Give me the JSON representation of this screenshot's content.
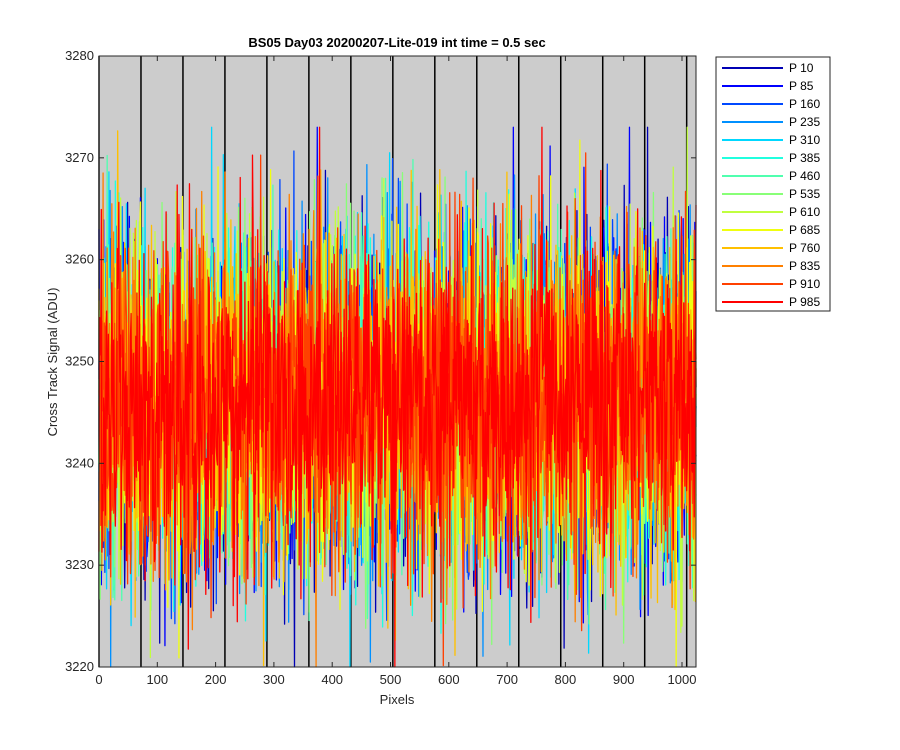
{
  "chart_data": {
    "type": "line",
    "title": "BS05 Day03 20200207-Lite-019 int time = 0.5 sec",
    "xlabel": "Pixels",
    "ylabel": "Cross Track Signal (ADU)",
    "xlim": [
      0,
      1024
    ],
    "ylim": [
      3220,
      3280
    ],
    "xticks": [
      0,
      100,
      200,
      300,
      400,
      500,
      600,
      700,
      800,
      900,
      1000
    ],
    "yticks": [
      3220,
      3230,
      3240,
      3250,
      3260,
      3270,
      3280
    ],
    "background_color": "#cccccc",
    "grid": false,
    "legend_location": "outside-top-right",
    "vertical_lines_x": [
      0,
      72,
      144,
      216,
      288,
      360,
      432,
      504,
      576,
      648,
      720,
      792,
      864,
      936,
      1008
    ],
    "vertical_line_color": "#000000",
    "noise": {
      "mean": 3246,
      "std": 8,
      "min": 3220,
      "max": 3273,
      "points_per_series": 1024
    },
    "series": [
      {
        "name": "P 10",
        "color": "#0000b4"
      },
      {
        "name": "P 85",
        "color": "#0000ff"
      },
      {
        "name": "P 160",
        "color": "#0048ff"
      },
      {
        "name": "P 235",
        "color": "#0090ff"
      },
      {
        "name": "P 310",
        "color": "#00d8ff"
      },
      {
        "name": "P 385",
        "color": "#20ffdf"
      },
      {
        "name": "P 460",
        "color": "#50ffaf"
      },
      {
        "name": "P 535",
        "color": "#88ff77"
      },
      {
        "name": "P 610",
        "color": "#c0ff3f"
      },
      {
        "name": "P 685",
        "color": "#f0ff0f"
      },
      {
        "name": "P 760",
        "color": "#ffc000"
      },
      {
        "name": "P 835",
        "color": "#ff8000"
      },
      {
        "name": "P 910",
        "color": "#ff4000"
      },
      {
        "name": "P 985",
        "color": "#ff0000"
      }
    ]
  }
}
